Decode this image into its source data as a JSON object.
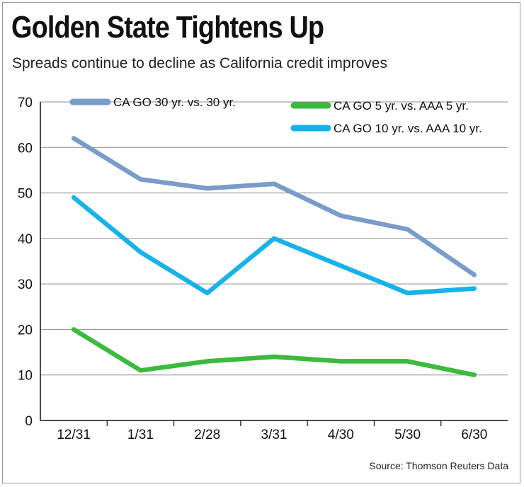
{
  "chart_data": {
    "type": "line",
    "title": "Golden State Tightens Up",
    "subtitle": "Spreads continue to decline as California credit improves",
    "source": "Source: Thomson Reuters Data",
    "xlabel": "",
    "ylabel": "",
    "categories": [
      "12/31",
      "1/31",
      "2/28",
      "3/31",
      "4/30",
      "5/30",
      "6/30"
    ],
    "ylim": [
      0,
      70
    ],
    "yticks": [
      0,
      10,
      20,
      30,
      40,
      50,
      60,
      70
    ],
    "grid": true,
    "series": [
      {
        "name": "CA GO 30 yr. vs. 30 yr.",
        "color": "#7a9cc8",
        "values": [
          62,
          53,
          51,
          52,
          45,
          42,
          32
        ]
      },
      {
        "name": "CA GO 5 yr. vs. AAA 5 yr.",
        "color": "#3dba3d",
        "values": [
          20,
          11,
          13,
          14,
          13,
          13,
          10
        ]
      },
      {
        "name": "CA GO 10 yr. vs. AAA 10 yr.",
        "color": "#18b2ea",
        "values": [
          49,
          37,
          28,
          40,
          34,
          28,
          29
        ]
      }
    ]
  }
}
